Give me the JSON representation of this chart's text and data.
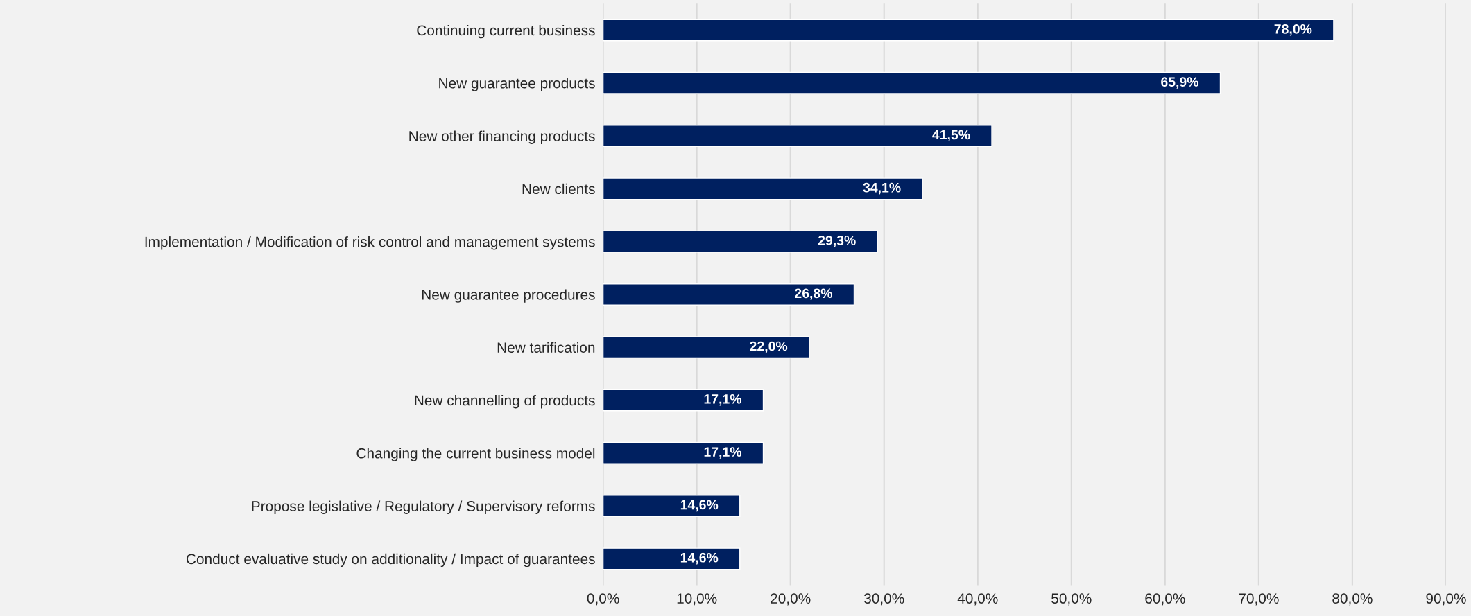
{
  "chart_data": {
    "type": "bar",
    "orientation": "horizontal",
    "categories": [
      "Continuing current business",
      "New guarantee products",
      "New other financing products",
      "New clients",
      "Implementation / Modification of risk control and management systems",
      "New guarantee procedures",
      "New tarification",
      "New channelling of products",
      "Changing the current business model",
      "Propose legislative / Regulatory / Supervisory reforms",
      "Conduct evaluative study on additionality / Impact of guarantees"
    ],
    "values": [
      78.0,
      65.9,
      41.5,
      34.1,
      29.3,
      26.8,
      22.0,
      17.1,
      17.1,
      14.6,
      14.6
    ],
    "value_labels": [
      "78,0%",
      "65,9%",
      "41,5%",
      "34,1%",
      "29,3%",
      "26,8%",
      "22,0%",
      "17,1%",
      "17,1%",
      "14,6%",
      "14,6%"
    ],
    "color": "#002060",
    "xlim": [
      0,
      90
    ],
    "xticks": [
      {
        "value": 0,
        "label": "0,0%"
      },
      {
        "value": 10,
        "label": "10,0%"
      },
      {
        "value": 20,
        "label": "20,0%"
      },
      {
        "value": 30,
        "label": "30,0%"
      },
      {
        "value": 40,
        "label": "40,0%"
      },
      {
        "value": 50,
        "label": "50,0%"
      },
      {
        "value": 60,
        "label": "60,0%"
      },
      {
        "value": 70,
        "label": "70,0%"
      },
      {
        "value": 80,
        "label": "80,0%"
      },
      {
        "value": 90,
        "label": "90,0%"
      }
    ],
    "grid": "x",
    "legend": false
  }
}
